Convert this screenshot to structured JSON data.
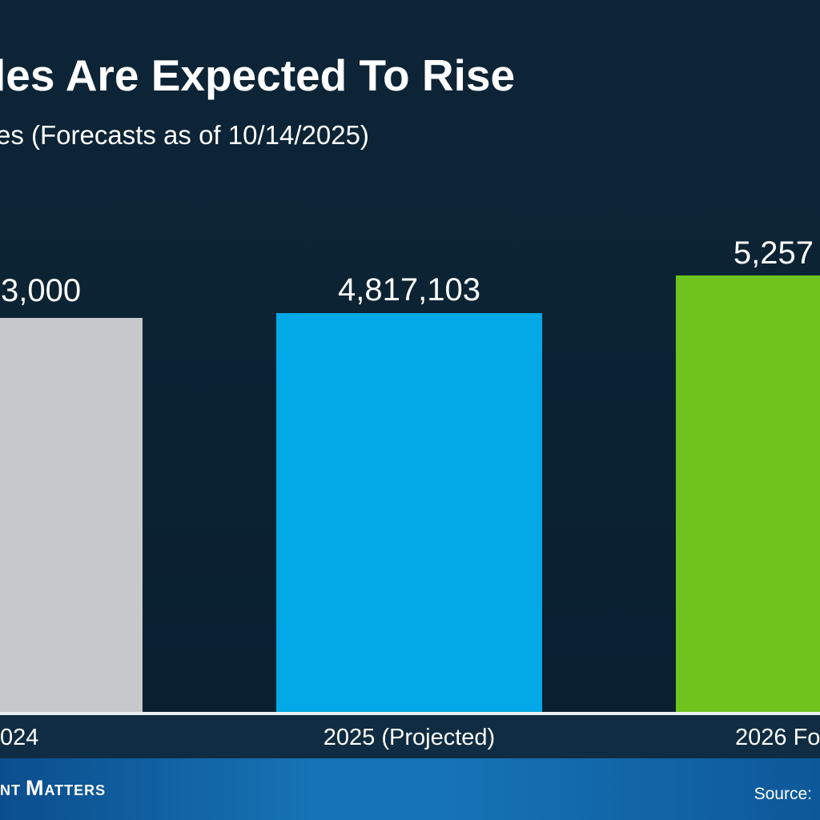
{
  "header": {
    "title": "les Are Expected To Rise",
    "subtitle": "es (Forecasts as of 10/14/2025)"
  },
  "chart": {
    "bars": [
      {
        "value_label": "3,000",
        "category": "024",
        "color": "#c6c8c9"
      },
      {
        "value_label": "4,817,103",
        "category": "2025 (Projected)",
        "color": "#03a8e6"
      },
      {
        "value_label": "5,257",
        "category": "2026 Fo",
        "color": "#6fc31d"
      }
    ],
    "axis_line_color": "#e8eef3",
    "band_color": "#102c42"
  },
  "chart_data": {
    "type": "bar",
    "title": "les Are Expected To Rise",
    "subtitle": "es (Forecasts as of 10/14/2025)",
    "categories": [
      "024",
      "2025 (Projected)",
      "2026 Fo"
    ],
    "data_labels": [
      "3,000",
      "4,817,103",
      "5,257"
    ],
    "values_estimated": [
      4760000,
      4817103,
      5260000
    ],
    "ylim": [
      0,
      5600000
    ],
    "grid": false,
    "legend": false,
    "bar_colors": [
      "#c6c8c9",
      "#03a8e6",
      "#6fc31d"
    ],
    "layout_note": "horizontal crop: leftmost and rightmost bars, their labels, title and footer text are cut off at the image edges"
  },
  "footer": {
    "brand_part_small": "NT",
    "brand_initial": "M",
    "brand_rest": "ATTERS",
    "source_label": "Source:",
    "gradient_left": "#0b4e8d",
    "gradient_mid": "#1673b5",
    "gradient_right": "#0d5899"
  }
}
